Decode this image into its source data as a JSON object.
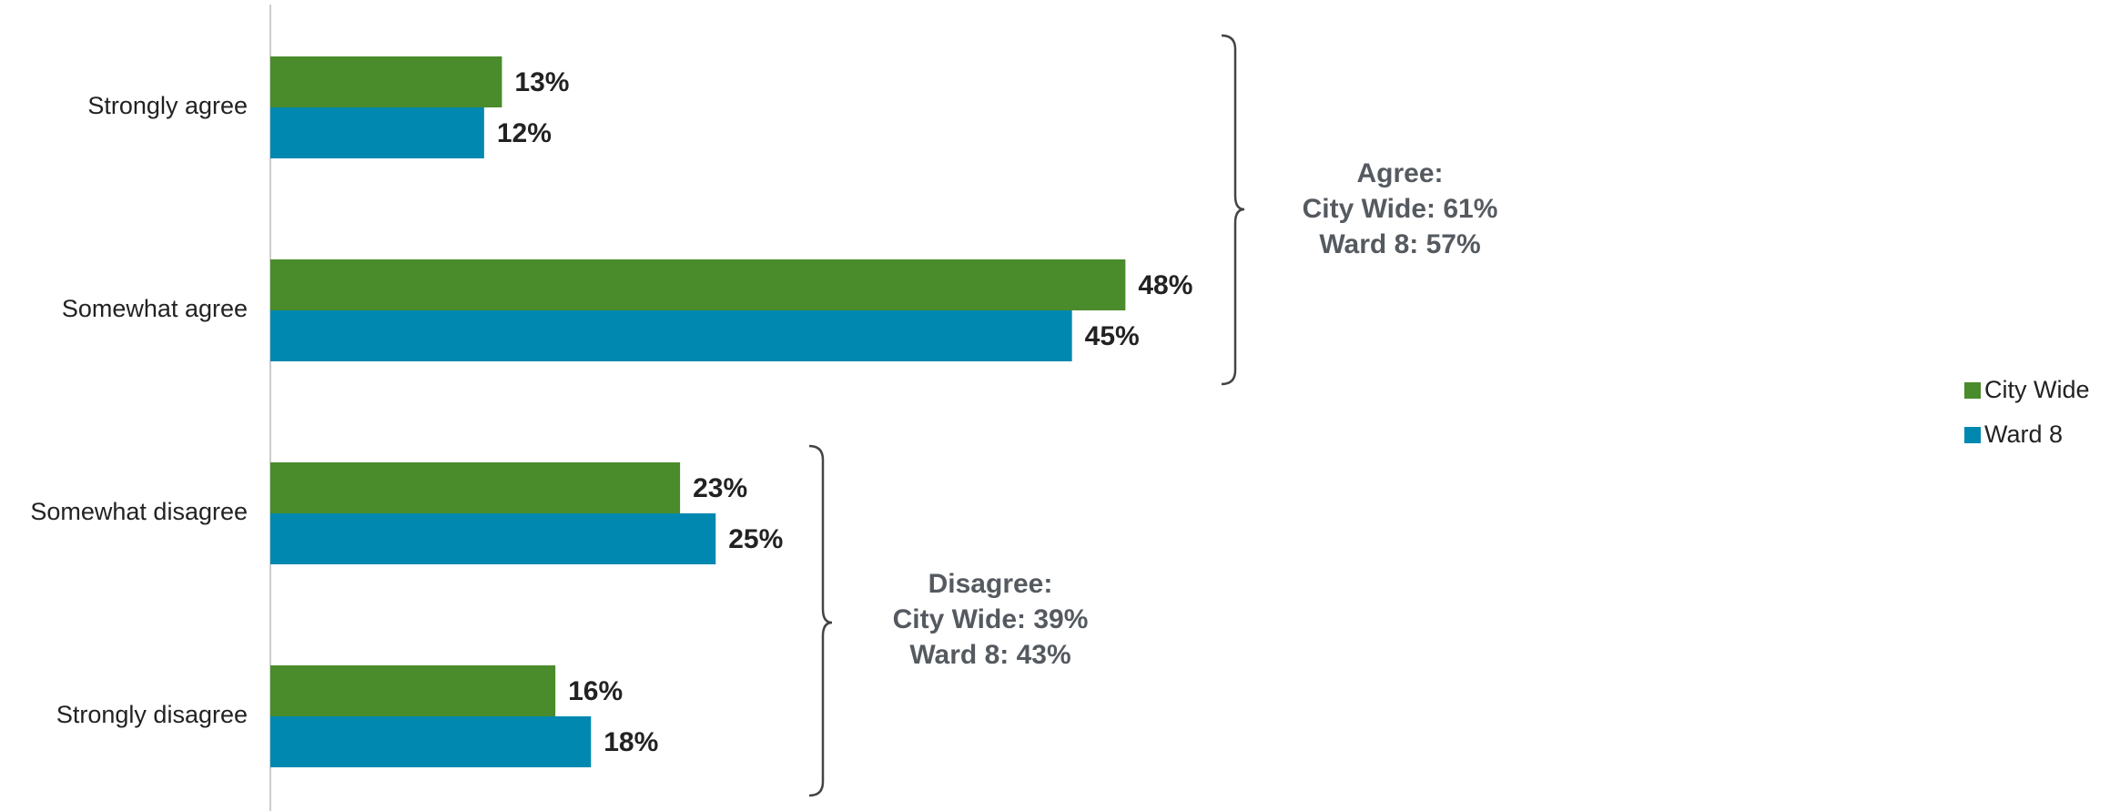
{
  "chart_data": {
    "type": "hbar",
    "categories": [
      "Strongly agree",
      "Somewhat agree",
      "Somewhat disagree",
      "Strongly disagree"
    ],
    "series": [
      {
        "name": "City Wide",
        "color": "#4a8b2c",
        "values": [
          13,
          48,
          23,
          16
        ],
        "value_labels": [
          "13%",
          "48%",
          "23%",
          "16%"
        ]
      },
      {
        "name": "Ward 8",
        "color": "#0088b0",
        "values": [
          12,
          45,
          25,
          18
        ],
        "value_labels": [
          "12%",
          "45%",
          "25%",
          "18%"
        ]
      }
    ],
    "legend": "right",
    "annotations": [
      {
        "lines": [
          "Agree:",
          "City Wide: 61%",
          "Ward 8: 57%"
        ]
      },
      {
        "lines": [
          "Disagree:",
          "City Wide: 39%",
          "Ward 8: 43%"
        ]
      }
    ]
  }
}
